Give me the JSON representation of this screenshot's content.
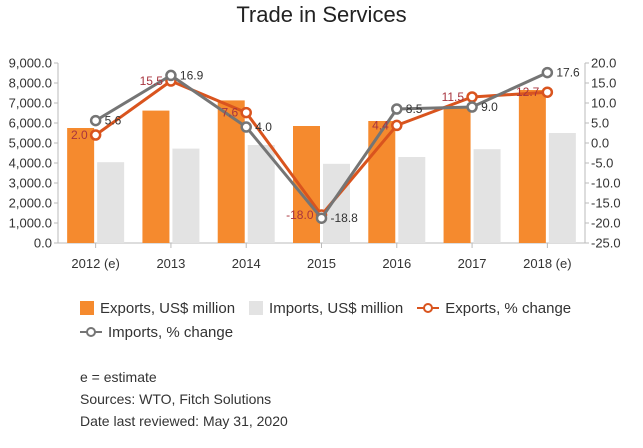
{
  "chart_data": {
    "type": "bar",
    "title": "Trade in Services",
    "categories": [
      "2012 (e)",
      "2013",
      "2014",
      "2015",
      "2016",
      "2017",
      "2018 (e)"
    ],
    "y_left": {
      "ticks": [
        "0.0",
        "1,000.0",
        "2,000.0",
        "3,000.0",
        "4,000.0",
        "5,000.0",
        "6,000.0",
        "7,000.0",
        "8,000.0",
        "9,000.0"
      ],
      "ylim": [
        0,
        9000
      ]
    },
    "y_right": {
      "ticks": [
        "-25.0",
        "-20.0",
        "-15.0",
        "-10.0",
        "-5.0",
        "0.0",
        "5.0",
        "10.0",
        "15.0",
        "20.0"
      ],
      "ylim": [
        -25,
        20
      ]
    },
    "grid": false,
    "legend_position": "bottom",
    "series": [
      {
        "name": "Exports, US$ million",
        "kind": "bar",
        "axis": "left",
        "color": "#F58A2E",
        "values": [
          5750,
          6620,
          7130,
          5850,
          6100,
          6800,
          7650
        ]
      },
      {
        "name": "Imports, US$ million",
        "kind": "bar",
        "axis": "left",
        "color": "#E3E3E3",
        "values": [
          4040,
          4720,
          4900,
          3960,
          4300,
          4690,
          5500
        ]
      },
      {
        "name": "Exports, % change",
        "kind": "line",
        "axis": "right",
        "color": "#D9541E",
        "label_color": "#A8343E",
        "values": [
          2.0,
          15.5,
          7.6,
          -18.0,
          4.4,
          11.5,
          12.7
        ],
        "labels": [
          "2.0",
          "15.5",
          "7.6",
          "-18.0",
          "4.4",
          "11.5",
          "12.7"
        ]
      },
      {
        "name": "Imports, % change",
        "kind": "line",
        "axis": "right",
        "color": "#757575",
        "label_color": "#333333",
        "values": [
          5.6,
          16.9,
          4.0,
          -18.8,
          8.5,
          9.0,
          17.6
        ],
        "labels": [
          "5.6",
          "16.9",
          "4.0",
          "-18.8",
          "8.5",
          "9.0",
          "17.6"
        ]
      }
    ]
  },
  "notes": {
    "estimate": "e = estimate",
    "sources": "Sources: WTO, Fitch Solutions",
    "reviewed": "Date last reviewed: May 31, 2020"
  }
}
